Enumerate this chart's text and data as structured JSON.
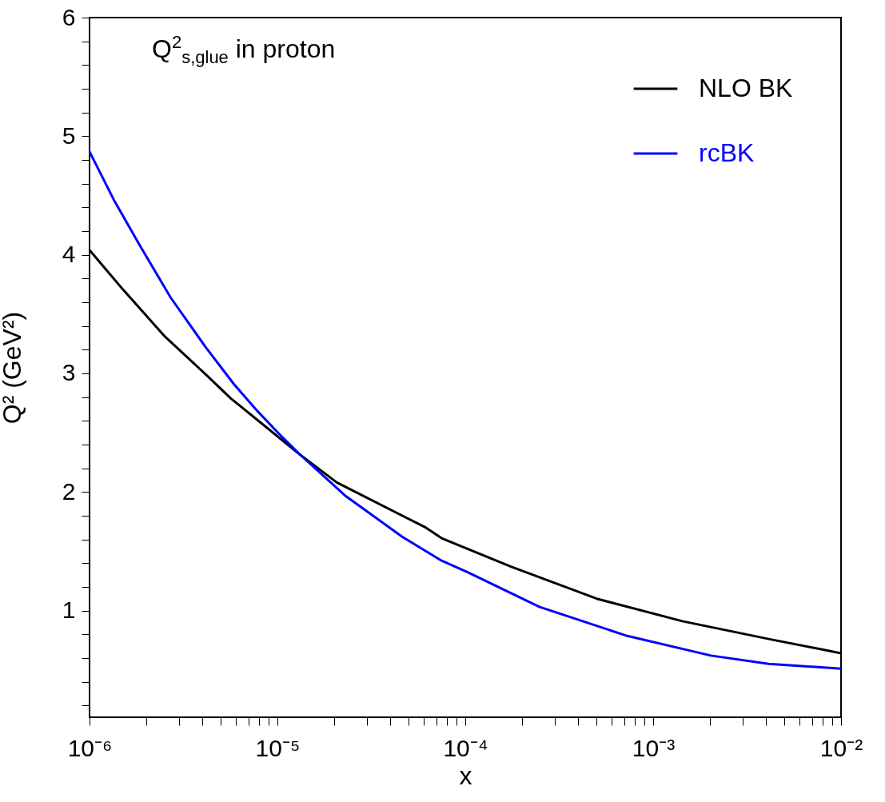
{
  "chart_data": {
    "type": "line",
    "title": "Q$^{2}$$_{s,glue}$ in proton",
    "xlabel": "x",
    "ylabel": "Q² (GeV²)",
    "log": "x",
    "legend": "top right",
    "xlim": [
      1e-06,
      0.01
    ],
    "ylim": [
      0.1,
      6
    ],
    "xticks": [
      {
        "value": 1e-06,
        "label": "10⁻⁶"
      },
      {
        "value": 2e-06,
        "label": null
      },
      {
        "value": 3e-06,
        "label": null
      },
      {
        "value": 4e-06,
        "label": null
      },
      {
        "value": 5e-06,
        "label": null
      },
      {
        "value": 6e-06,
        "label": null
      },
      {
        "value": 7e-06,
        "label": null
      },
      {
        "value": 8e-06,
        "label": null
      },
      {
        "value": 9e-06,
        "label": null
      },
      {
        "value": 1e-05,
        "label": "10⁻⁵"
      },
      {
        "value": 2e-05,
        "label": null
      },
      {
        "value": 3e-05,
        "label": null
      },
      {
        "value": 4e-05,
        "label": null
      },
      {
        "value": 5e-05,
        "label": null
      },
      {
        "value": 6e-05,
        "label": null
      },
      {
        "value": 7e-05,
        "label": null
      },
      {
        "value": 8e-05,
        "label": null
      },
      {
        "value": 9e-05,
        "label": null
      },
      {
        "value": 0.0001,
        "label": "10⁻⁴"
      },
      {
        "value": 0.0002,
        "label": null
      },
      {
        "value": 0.0003,
        "label": null
      },
      {
        "value": 0.0004,
        "label": null
      },
      {
        "value": 0.0005,
        "label": null
      },
      {
        "value": 0.0006,
        "label": null
      },
      {
        "value": 0.0007,
        "label": null
      },
      {
        "value": 0.0008,
        "label": null
      },
      {
        "value": 0.0009,
        "label": null
      },
      {
        "value": 0.001,
        "label": "10⁻³"
      },
      {
        "value": 0.002,
        "label": null
      },
      {
        "value": 0.003,
        "label": null
      },
      {
        "value": 0.004,
        "label": null
      },
      {
        "value": 0.005,
        "label": null
      },
      {
        "value": 0.006,
        "label": null
      },
      {
        "value": 0.007,
        "label": null
      },
      {
        "value": 0.008,
        "label": null
      },
      {
        "value": 0.009,
        "label": null
      },
      {
        "value": 0.01,
        "label": "10⁻²"
      }
    ],
    "yticks": [
      {
        "value": 0.2,
        "label": null
      },
      {
        "value": 0.4,
        "label": null
      },
      {
        "value": 0.6,
        "label": null
      },
      {
        "value": 0.8,
        "label": null
      },
      1,
      {
        "value": 1.2,
        "label": null
      },
      {
        "value": 1.4,
        "label": null
      },
      {
        "value": 1.6,
        "label": null
      },
      {
        "value": 1.8,
        "label": null
      },
      2,
      {
        "value": 2.2,
        "label": null
      },
      {
        "value": 2.4,
        "label": null
      },
      {
        "value": 2.6,
        "label": null
      },
      {
        "value": 2.8,
        "label": null
      },
      3,
      {
        "value": 3.2,
        "label": null
      },
      {
        "value": 3.4,
        "label": null
      },
      {
        "value": 3.6,
        "label": null
      },
      {
        "value": 3.8,
        "label": null
      },
      4,
      {
        "value": 4.2,
        "label": null
      },
      {
        "value": 4.4,
        "label": null
      },
      {
        "value": 4.6,
        "label": null
      },
      {
        "value": 4.8,
        "label": null
      },
      5,
      {
        "value": 5.2,
        "label": null
      },
      {
        "value": 5.4,
        "label": null
      },
      {
        "value": 5.6,
        "label": null
      },
      {
        "value": 5.8,
        "label": null
      },
      6
    ],
    "series": [
      {
        "name": "NLO BK",
        "color": "#000000",
        "x": [
          1e-06,
          1.5e-06,
          2.52e-06,
          4.29e-06,
          5.64e-06,
          1.33e-05,
          2.07e-05,
          6.15e-05,
          7.48e-05,
          0.000175,
          0.0005,
          0.00143,
          0.00412,
          0.01
        ],
        "values": [
          4.04,
          3.71,
          3.31,
          2.97,
          2.79,
          2.31,
          2.08,
          1.7,
          1.61,
          1.37,
          1.1,
          0.91,
          0.76,
          0.64
        ]
      },
      {
        "name": "rcBK",
        "color": "#0000ff",
        "x": [
          1e-06,
          1.35e-06,
          1.85e-06,
          2.7e-06,
          4.11e-06,
          5.86e-06,
          7.74e-06,
          1.02e-05,
          1.33e-05,
          2.29e-05,
          4.63e-05,
          7.48e-05,
          0.000104,
          0.000249,
          0.000713,
          0.00203,
          0.00412,
          0.01
        ],
        "values": [
          4.87,
          4.46,
          4.08,
          3.64,
          3.23,
          2.91,
          2.69,
          2.49,
          2.31,
          1.97,
          1.62,
          1.42,
          1.32,
          1.03,
          0.79,
          0.62,
          0.55,
          0.51
        ]
      }
    ]
  }
}
